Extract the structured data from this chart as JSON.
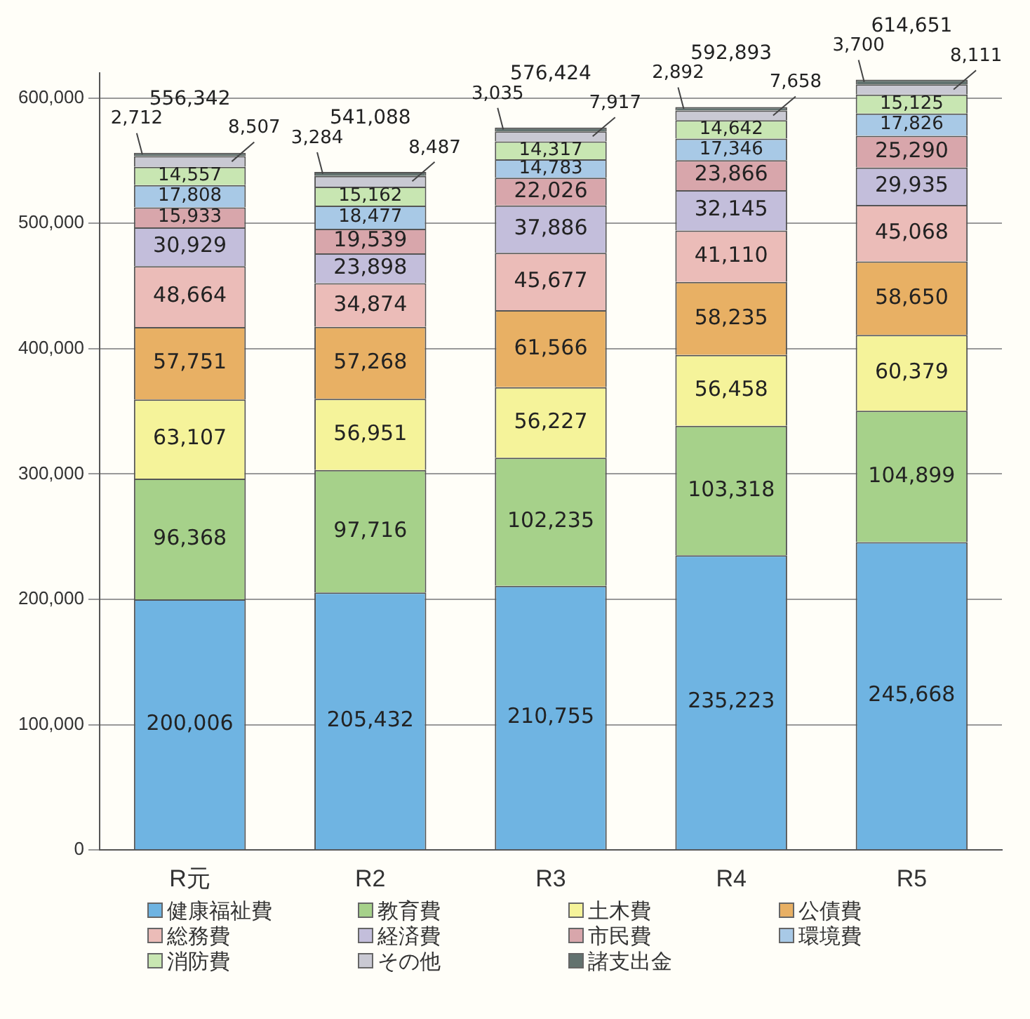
{
  "chart_data": {
    "type": "bar",
    "stacked": true,
    "categories": [
      "R元",
      "R2",
      "R3",
      "R4",
      "R5"
    ],
    "ylim": [
      0,
      620000
    ],
    "yticks": [
      {
        "value": 0,
        "label": "0"
      },
      {
        "value": 100000,
        "label": "100,000"
      },
      {
        "value": 200000,
        "label": "200,000"
      },
      {
        "value": 300000,
        "label": "300,000"
      },
      {
        "value": 400000,
        "label": "400,000"
      },
      {
        "value": 500000,
        "label": "500,000"
      },
      {
        "value": 600000,
        "label": "600,000"
      }
    ],
    "grid": "y",
    "legend": "bottom",
    "totals": [
      "556,342",
      "541,088",
      "576,424",
      "592,893",
      "614,651"
    ],
    "series": [
      {
        "name": "健康福祉費",
        "color": "#6fb4e2",
        "values": [
          200006,
          205432,
          210755,
          235223,
          245668
        ],
        "value_labels": [
          "200,006",
          "205,432",
          "210,755",
          "235,223",
          "245,668"
        ]
      },
      {
        "name": "教育費",
        "color": "#a6d18a",
        "values": [
          96368,
          97716,
          102235,
          103318,
          104899
        ],
        "value_labels": [
          "96,368",
          "97,716",
          "102,235",
          "103,318",
          "104,899"
        ]
      },
      {
        "name": "土木費",
        "color": "#f5f39a",
        "values": [
          63107,
          56951,
          56227,
          56458,
          60379
        ],
        "value_labels": [
          "63,107",
          "56,951",
          "56,227",
          "56,458",
          "60,379"
        ]
      },
      {
        "name": "公債費",
        "color": "#e8b064",
        "values": [
          57751,
          57268,
          61566,
          58235,
          58650
        ],
        "value_labels": [
          "57,751",
          "57,268",
          "61,566",
          "58,235",
          "58,650"
        ]
      },
      {
        "name": "総務費",
        "color": "#ebbcb8",
        "values": [
          48664,
          34874,
          45677,
          41110,
          45068
        ],
        "value_labels": [
          "48,664",
          "34,874",
          "45,677",
          "41,110",
          "45,068"
        ]
      },
      {
        "name": "経済費",
        "color": "#c3bedb",
        "values": [
          30929,
          23898,
          37886,
          32145,
          29935
        ],
        "value_labels": [
          "30,929",
          "23,898",
          "37,886",
          "32,145",
          "29,935"
        ]
      },
      {
        "name": "市民費",
        "color": "#d8a6ab",
        "values": [
          15933,
          19539,
          22026,
          23866,
          25290
        ],
        "value_labels": [
          "15,933",
          "19,539",
          "22,026",
          "23,866",
          "25,290"
        ]
      },
      {
        "name": "環境費",
        "color": "#a8c9e6",
        "values": [
          17808,
          18477,
          14783,
          17346,
          17826
        ],
        "value_labels": [
          "17,808",
          "18,477",
          "14,783",
          "17,346",
          "17,826"
        ]
      },
      {
        "name": "消防費",
        "color": "#c8e6b2",
        "values": [
          14557,
          15162,
          14317,
          14642,
          15125
        ],
        "value_labels": [
          "14,557",
          "15,162",
          "14,317",
          "14,642",
          "15,125"
        ]
      },
      {
        "name": "その他",
        "color": "#c9c9d3",
        "values": [
          8507,
          8487,
          7917,
          7658,
          8111
        ],
        "value_labels": [
          "8,507",
          "8,487",
          "7,917",
          "7,658",
          "8,111"
        ]
      },
      {
        "name": "諸支出金",
        "color": "#62726f",
        "values": [
          2712,
          3284,
          3035,
          2892,
          3700
        ],
        "value_labels": [
          "2,712",
          "3,284",
          "3,035",
          "2,892",
          "3,700"
        ]
      }
    ]
  }
}
